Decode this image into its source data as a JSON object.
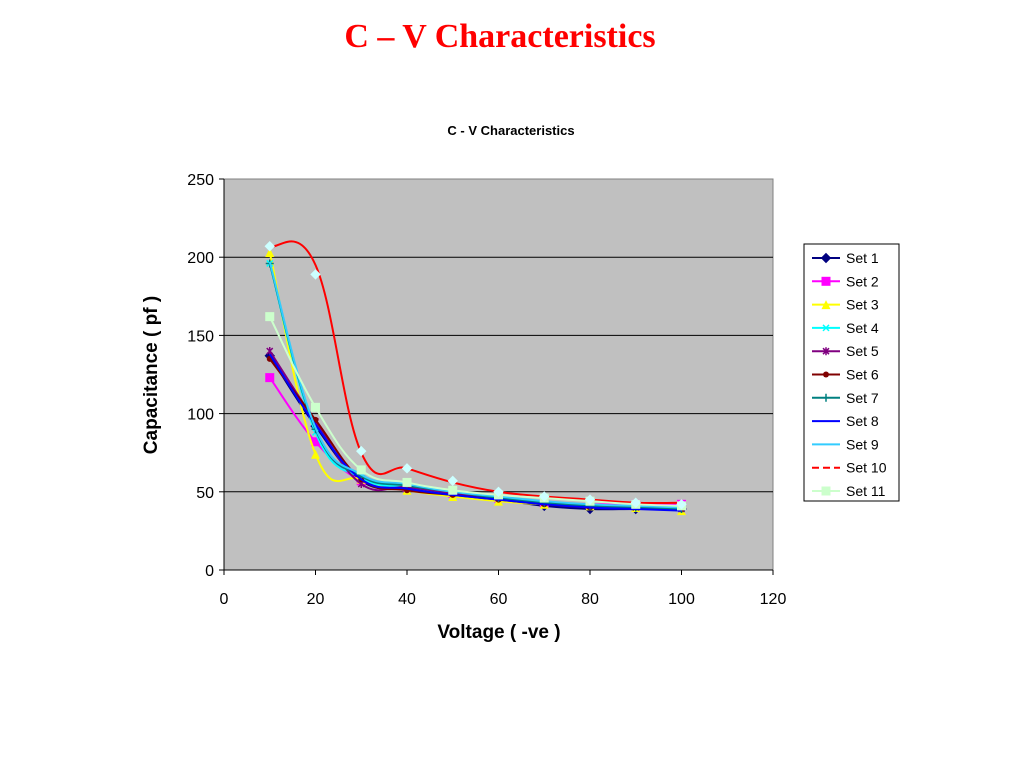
{
  "slide": {
    "title": "C – V Characteristics"
  },
  "chart_data": {
    "type": "line",
    "title": "C - V Characteristics",
    "xlabel": "Voltage ( -ve )",
    "ylabel": "Capacitance ( pf )",
    "xlim": [
      0,
      120
    ],
    "ylim": [
      0,
      250
    ],
    "xticks": [
      0,
      20,
      40,
      60,
      80,
      100,
      120
    ],
    "yticks": [
      0,
      50,
      100,
      150,
      200,
      250
    ],
    "grid": "horizontal",
    "legend": "right",
    "plot_background": "#c0c0c0",
    "x": [
      10,
      20,
      30,
      40,
      50,
      60,
      70,
      80,
      90,
      100
    ],
    "series": [
      {
        "name": "Set 1",
        "color": "#000080",
        "marker": "diamond",
        "values": [
          137,
          92,
          57,
          52,
          48,
          45,
          41,
          39,
          39,
          39
        ]
      },
      {
        "name": "Set 2",
        "color": "#ff00ff",
        "marker": "square",
        "values": [
          123,
          82,
          57,
          53,
          49,
          46,
          43,
          42,
          42,
          42
        ]
      },
      {
        "name": "Set 3",
        "color": "#ffff00",
        "marker": "triangle",
        "values": [
          203,
          74,
          58,
          51,
          47,
          44,
          42,
          41,
          40,
          38
        ]
      },
      {
        "name": "Set 4",
        "color": "#00ffff",
        "marker": "x",
        "values": [
          196,
          88,
          59,
          53,
          49,
          46,
          43,
          41,
          40,
          39
        ]
      },
      {
        "name": "Set 5",
        "color": "#800080",
        "marker": "star",
        "values": [
          140,
          95,
          55,
          53,
          49,
          46,
          43,
          41,
          40,
          39
        ]
      },
      {
        "name": "Set 6",
        "color": "#800000",
        "marker": "circle",
        "values": [
          135,
          96,
          58,
          51,
          48,
          45,
          42,
          40,
          40,
          39
        ]
      },
      {
        "name": "Set 7",
        "color": "#008080",
        "marker": "plus",
        "values": [
          196,
          90,
          60,
          54,
          50,
          46,
          43,
          41,
          40,
          39
        ]
      },
      {
        "name": "Set 8",
        "color": "#0000ff",
        "marker": "none",
        "values": [
          138,
          93,
          58,
          52,
          48,
          45,
          42,
          40,
          39,
          38
        ]
      },
      {
        "name": "Set 9",
        "color": "#33ccff",
        "marker": "none",
        "values": [
          197,
          91,
          61,
          55,
          50,
          47,
          44,
          42,
          41,
          40
        ]
      },
      {
        "name": "Set 10",
        "color": "#ff0000",
        "marker": "none",
        "values": [
          207,
          195,
          75,
          65,
          56,
          50,
          47,
          45,
          43,
          43
        ]
      },
      {
        "name": "Set 11",
        "color": "#ccffcc",
        "marker": "square",
        "values": [
          162,
          104,
          64,
          56,
          51,
          48,
          46,
          44,
          42,
          41
        ]
      }
    ],
    "extra_points": [
      {
        "name": "Set 10",
        "color": "#ccffff",
        "marker": "diamond",
        "x": [
          10,
          20,
          30,
          40,
          50,
          60,
          70,
          80,
          90,
          100
        ],
        "values": [
          207,
          189,
          76,
          65,
          57,
          50,
          47,
          45,
          43,
          42
        ]
      }
    ]
  }
}
